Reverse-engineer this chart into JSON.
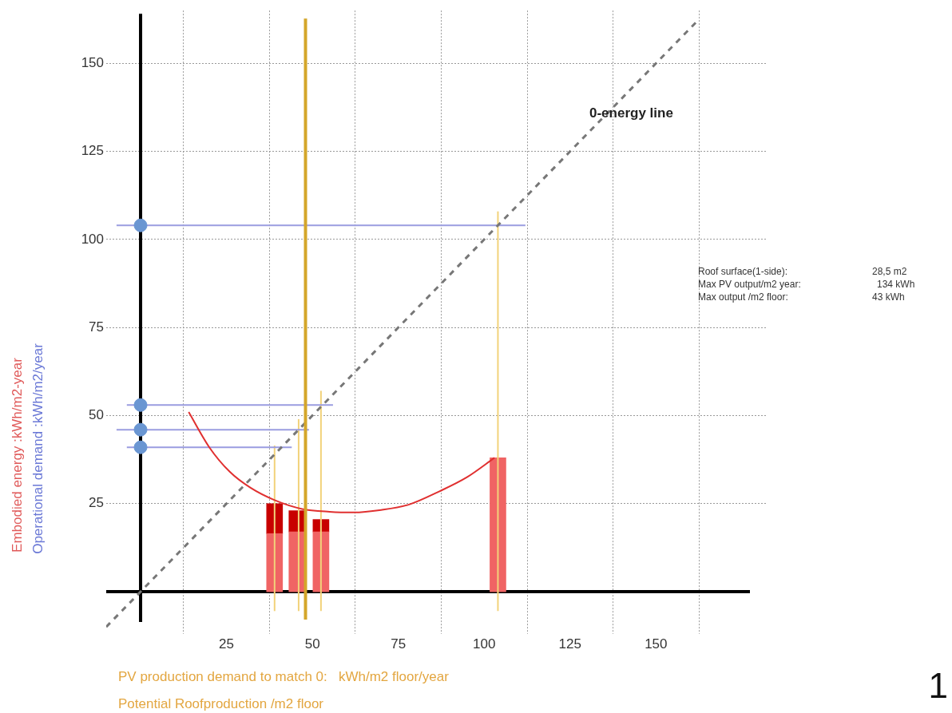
{
  "chart_data": {
    "type": "line",
    "xlabel": "PV production demand to match 0:   kWh/m2 floor/year",
    "ylabel": "Embodied energy :kWh/m2-year",
    "xlim": [
      -10,
      182
    ],
    "ylim": [
      -12,
      165
    ],
    "xticks": [
      25,
      50,
      75,
      100,
      125,
      150
    ],
    "yticks": [
      25,
      50,
      75,
      100,
      125,
      150
    ],
    "grid": true,
    "legend": false,
    "stacked": true,
    "ref_lines": [
      {
        "axis": "x",
        "value": 48,
        "color": "#d4a62a"
      }
    ],
    "annotations": [
      "Operational demand :kWh/m2/year",
      "0-energy line",
      "Roof surface(1-side):",
      "28,5 m2",
      "Max PV output/m2 year:",
      "134 kWh",
      "Max output /m2 floor:",
      "43 kWh",
      "Potential Roofproduction /m2 floor",
      "1"
    ],
    "series": [
      {
        "type": "bar",
        "x": [
          39,
          45.5,
          52.5,
          104
        ],
        "values": [
          16.5,
          17,
          17,
          38
        ],
        "color": "#f06464"
      },
      {
        "type": "bar",
        "x": [
          39,
          45.5,
          52.5,
          null
        ],
        "values": [
          8.5,
          6,
          3.5,
          null
        ],
        "color": "#c80000"
      },
      {
        "x": [
          14,
          20,
          26,
          32,
          39,
          47,
          55,
          62,
          70,
          78,
          87,
          95,
          103
        ],
        "values": [
          51,
          41,
          34,
          29.5,
          26,
          23.5,
          22.7,
          22.5,
          23.2,
          24.7,
          28.5,
          32.5,
          38
        ],
        "color": "#e03030",
        "marker": "none"
      },
      {
        "x": [
          -10,
          162
        ],
        "values": [
          -10,
          162
        ],
        "color": "#777777",
        "line_style": "dashed",
        "marker": "none"
      },
      {
        "x": [
          -7,
          112
        ],
        "values": [
          104,
          104
        ],
        "color": "#9a9ce0",
        "marker": "none"
      },
      {
        "x": [
          -4,
          56
        ],
        "values": [
          53,
          53
        ],
        "color": "#9a9ce0",
        "marker": "none"
      },
      {
        "x": [
          -7,
          49
        ],
        "values": [
          46,
          46
        ],
        "color": "#9a9ce0",
        "marker": "none"
      },
      {
        "x": [
          -4,
          44
        ],
        "values": [
          41,
          41
        ],
        "color": "#9a9ce0",
        "marker": "none"
      },
      {
        "x": [
          39,
          39
        ],
        "values": [
          -5.5,
          41.5
        ],
        "color": "#f2d27a",
        "marker": "none"
      },
      {
        "x": [
          46,
          46
        ],
        "values": [
          -5.5,
          49
        ],
        "color": "#f2d27a",
        "marker": "none"
      },
      {
        "x": [
          52.5,
          52.5
        ],
        "values": [
          -5.5,
          57
        ],
        "color": "#f2d27a",
        "marker": "none"
      },
      {
        "x": [
          104,
          104
        ],
        "values": [
          -5.5,
          108
        ],
        "color": "#f2d27a",
        "marker": "none"
      },
      {
        "type": "scatter",
        "x": [
          0,
          0,
          0,
          0
        ],
        "values": [
          104,
          53,
          46,
          41
        ],
        "color": "#6a96d2",
        "marker": "circle"
      }
    ]
  }
}
